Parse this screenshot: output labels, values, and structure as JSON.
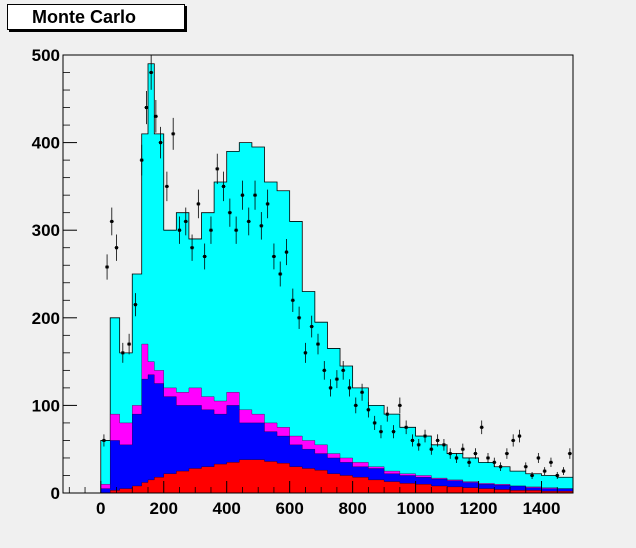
{
  "canvas_title": "Monte Carlo",
  "colors": {
    "background": "#f0f0f0",
    "total": "#00ffff",
    "magenta": "#ff00ff",
    "blue": "#0000ff",
    "red": "#ff0000",
    "data_points": "#000000"
  },
  "chart_data": {
    "type": "area",
    "title": "Monte Carlo",
    "xlabel": "",
    "ylabel": "",
    "xlim": [
      -120,
      1500
    ],
    "ylim": [
      0,
      500
    ],
    "x_ticks": [
      0,
      200,
      400,
      600,
      800,
      1000,
      1200,
      1400
    ],
    "y_ticks": [
      0,
      100,
      200,
      300,
      400,
      500
    ],
    "grid": false,
    "legend": "none",
    "x": [
      0,
      30,
      60,
      100,
      130,
      150,
      170,
      200,
      240,
      280,
      320,
      360,
      400,
      440,
      480,
      520,
      560,
      600,
      640,
      680,
      720,
      760,
      800,
      850,
      900,
      950,
      1000,
      1050,
      1100,
      1150,
      1200,
      1250,
      1300,
      1350,
      1400,
      1450,
      1500
    ],
    "series": [
      {
        "color": "#00ffff",
        "values": [
          60,
          200,
          160,
          250,
          410,
          490,
          410,
          300,
          320,
          290,
          320,
          355,
          390,
          400,
          395,
          355,
          345,
          310,
          230,
          195,
          165,
          145,
          120,
          100,
          90,
          75,
          65,
          55,
          45,
          40,
          35,
          30,
          25,
          22,
          20,
          18,
          15
        ]
      },
      {
        "color": "#ff00ff",
        "values": [
          10,
          90,
          80,
          100,
          170,
          150,
          140,
          120,
          115,
          120,
          110,
          105,
          115,
          95,
          90,
          80,
          75,
          65,
          60,
          55,
          45,
          40,
          35,
          30,
          25,
          22,
          20,
          17,
          15,
          13,
          11,
          10,
          8,
          7,
          6,
          5,
          5
        ]
      },
      {
        "color": "#0000ff",
        "values": [
          5,
          60,
          55,
          90,
          130,
          135,
          125,
          110,
          100,
          100,
          95,
          90,
          100,
          80,
          80,
          70,
          65,
          55,
          50,
          45,
          40,
          35,
          30,
          28,
          22,
          20,
          18,
          16,
          14,
          12,
          10,
          9,
          8,
          6,
          5,
          5,
          4
        ]
      },
      {
        "color": "#ff0000",
        "values": [
          0,
          3,
          5,
          8,
          12,
          15,
          18,
          22,
          25,
          28,
          30,
          33,
          35,
          38,
          38,
          36,
          34,
          30,
          28,
          26,
          22,
          20,
          18,
          15,
          13,
          11,
          10,
          8,
          7,
          6,
          5,
          4,
          3,
          3,
          2,
          2,
          1
        ]
      }
    ],
    "points": [
      {
        "x": 10,
        "y": 60
      },
      {
        "x": 20,
        "y": 258
      },
      {
        "x": 35,
        "y": 310
      },
      {
        "x": 50,
        "y": 280
      },
      {
        "x": 70,
        "y": 160
      },
      {
        "x": 90,
        "y": 170
      },
      {
        "x": 110,
        "y": 215
      },
      {
        "x": 130,
        "y": 380
      },
      {
        "x": 145,
        "y": 440
      },
      {
        "x": 160,
        "y": 480
      },
      {
        "x": 175,
        "y": 430
      },
      {
        "x": 190,
        "y": 400
      },
      {
        "x": 210,
        "y": 350
      },
      {
        "x": 230,
        "y": 410
      },
      {
        "x": 250,
        "y": 300
      },
      {
        "x": 270,
        "y": 310
      },
      {
        "x": 290,
        "y": 280
      },
      {
        "x": 310,
        "y": 330
      },
      {
        "x": 330,
        "y": 270
      },
      {
        "x": 350,
        "y": 300
      },
      {
        "x": 370,
        "y": 370
      },
      {
        "x": 390,
        "y": 350
      },
      {
        "x": 410,
        "y": 320
      },
      {
        "x": 430,
        "y": 300
      },
      {
        "x": 450,
        "y": 340
      },
      {
        "x": 470,
        "y": 310
      },
      {
        "x": 490,
        "y": 340
      },
      {
        "x": 510,
        "y": 305
      },
      {
        "x": 530,
        "y": 330
      },
      {
        "x": 550,
        "y": 270
      },
      {
        "x": 570,
        "y": 250
      },
      {
        "x": 590,
        "y": 275
      },
      {
        "x": 610,
        "y": 220
      },
      {
        "x": 630,
        "y": 200
      },
      {
        "x": 650,
        "y": 160
      },
      {
        "x": 670,
        "y": 190
      },
      {
        "x": 690,
        "y": 170
      },
      {
        "x": 710,
        "y": 140
      },
      {
        "x": 730,
        "y": 120
      },
      {
        "x": 750,
        "y": 130
      },
      {
        "x": 770,
        "y": 140
      },
      {
        "x": 790,
        "y": 120
      },
      {
        "x": 810,
        "y": 100
      },
      {
        "x": 830,
        "y": 115
      },
      {
        "x": 850,
        "y": 95
      },
      {
        "x": 870,
        "y": 80
      },
      {
        "x": 890,
        "y": 70
      },
      {
        "x": 910,
        "y": 90
      },
      {
        "x": 930,
        "y": 70
      },
      {
        "x": 950,
        "y": 100
      },
      {
        "x": 970,
        "y": 75
      },
      {
        "x": 990,
        "y": 60
      },
      {
        "x": 1010,
        "y": 55
      },
      {
        "x": 1030,
        "y": 65
      },
      {
        "x": 1050,
        "y": 50
      },
      {
        "x": 1070,
        "y": 60
      },
      {
        "x": 1090,
        "y": 55
      },
      {
        "x": 1110,
        "y": 45
      },
      {
        "x": 1130,
        "y": 40
      },
      {
        "x": 1150,
        "y": 50
      },
      {
        "x": 1170,
        "y": 35
      },
      {
        "x": 1190,
        "y": 45
      },
      {
        "x": 1210,
        "y": 75
      },
      {
        "x": 1230,
        "y": 40
      },
      {
        "x": 1250,
        "y": 35
      },
      {
        "x": 1270,
        "y": 30
      },
      {
        "x": 1290,
        "y": 45
      },
      {
        "x": 1310,
        "y": 60
      },
      {
        "x": 1330,
        "y": 65
      },
      {
        "x": 1350,
        "y": 30
      },
      {
        "x": 1370,
        "y": 20
      },
      {
        "x": 1390,
        "y": 40
      },
      {
        "x": 1410,
        "y": 25
      },
      {
        "x": 1430,
        "y": 35
      },
      {
        "x": 1450,
        "y": 20
      },
      {
        "x": 1470,
        "y": 25
      },
      {
        "x": 1490,
        "y": 45
      }
    ]
  }
}
